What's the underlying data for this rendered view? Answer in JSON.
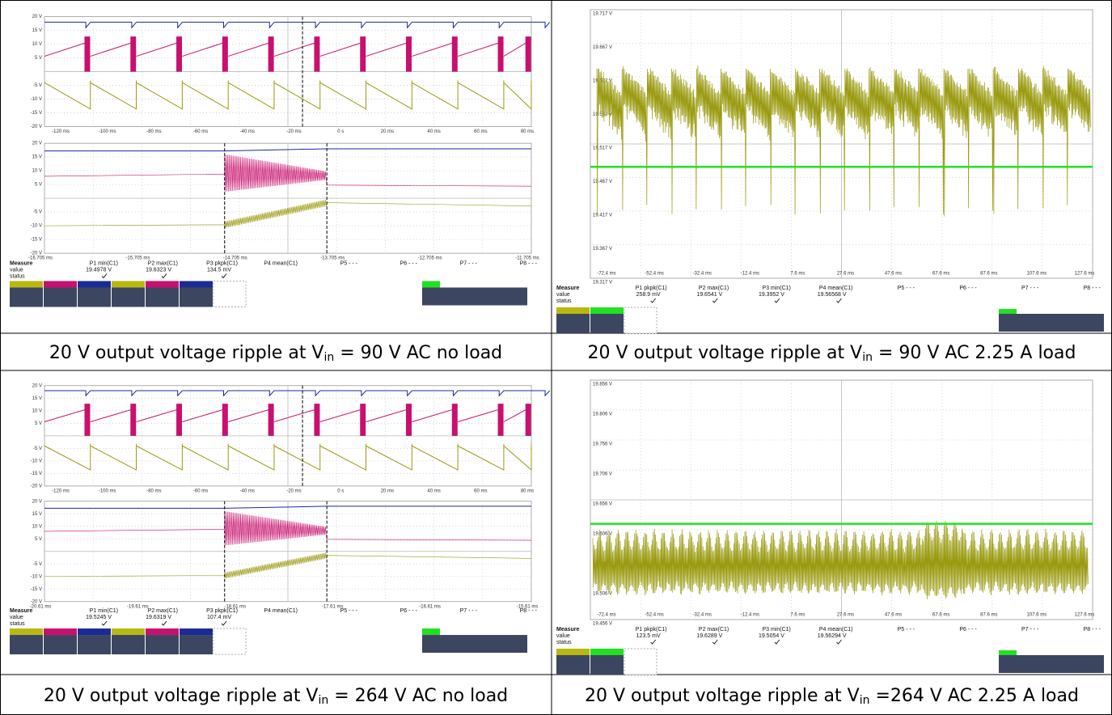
{
  "panels": [
    {
      "caption": {
        "pre": "20 V output voltage ripple at V",
        "sub": "in",
        "post": " = 90 V AC no load"
      },
      "scope": {
        "kind": "dual",
        "top_yticks": [
          "20 V",
          "15 V",
          "10 V",
          "5 V",
          "-5 V",
          "-10 V",
          "-15 V",
          "-20 V"
        ],
        "top_xticks": [
          "-120 ms",
          "-100 ms",
          "-80 ms",
          "-60 ms",
          "-40 ms",
          "-20 ms",
          "0 s",
          "20 ms",
          "40 ms",
          "60 ms",
          "80 ms"
        ],
        "zoom_yticks": [
          "20 V",
          "15 V",
          "10 V",
          "5 V",
          "-5 V",
          "-10 V",
          "-15 V",
          "-20 V"
        ],
        "zoom_xticks": [
          "-16.705 ms",
          "-15.705 ms",
          "-14.705 ms",
          "-13.705 ms",
          "-12.705 ms",
          "-11.705 ms"
        ],
        "measure": {
          "title": "Measure",
          "rows": [
            "value",
            "status"
          ],
          "params": [
            "P1 min(C1)",
            "P2 max(C1)",
            "P3 pkpk(C1)",
            "P4 mean(C1)",
            "P5 - - -",
            "P6 - - -",
            "P7 - - -",
            "P8 - - -"
          ],
          "values": [
            "19.4978 V",
            "19.6323 V",
            "134.5 mV"
          ]
        }
      }
    },
    {
      "caption": {
        "pre": "20 V output voltage ripple at V",
        "sub": "in",
        "post": " = 90 V AC 2.25 A load"
      },
      "scope": {
        "kind": "single",
        "yticks": [
          "19.717 V",
          "19.667 V",
          "19.617 V",
          "19.567 V",
          "19.517 V",
          "19.467 V",
          "19.417 V",
          "19.367 V",
          "19.317 V"
        ],
        "xticks": [
          "-72.4 ms",
          "-52.4 ms",
          "-32.4 ms",
          "-12.4 ms",
          "7.6 ms",
          "27.6 ms",
          "47.6 ms",
          "67.6 ms",
          "87.6 ms",
          "107.6 ms",
          "127.6 ms"
        ],
        "measure": {
          "title": "Measure",
          "rows": [
            "value",
            "status"
          ],
          "params": [
            "P1 pkpk(C1)",
            "P2 max(C1)",
            "P3 min(C1)",
            "P4 mean(C1)",
            "P5 - - -",
            "P6 - - -",
            "P7 - - -",
            "P8 - - -"
          ],
          "values": [
            "258.9 mV",
            "19.6541 V",
            "19.3952 V",
            "19.56568 V"
          ]
        }
      }
    },
    {
      "caption": {
        "pre": "20 V output voltage ripple at V",
        "sub": "in",
        "post": " = 264 V AC no load"
      },
      "scope": {
        "kind": "dual",
        "top_yticks": [
          "20 V",
          "15 V",
          "10 V",
          "5 V",
          "-5 V",
          "-10 V",
          "-15 V",
          "-20 V"
        ],
        "top_xticks": [
          "-120 ms",
          "-100 ms",
          "-80 ms",
          "-60 ms",
          "-40 ms",
          "-20 ms",
          "0 s",
          "20 ms",
          "40 ms",
          "60 ms",
          "80 ms"
        ],
        "zoom_yticks": [
          "20 V",
          "15 V",
          "10 V",
          "5 V",
          "-5 V",
          "-10 V",
          "-15 V",
          "-20 V"
        ],
        "zoom_xticks": [
          "-20.61 ms",
          "-19.61 ms",
          "-18.61 ms",
          "-17.61 ms",
          "-16.61 ms",
          "-15.61 ms"
        ],
        "measure": {
          "title": "Measure",
          "rows": [
            "value",
            "status"
          ],
          "params": [
            "P1 min(C1)",
            "P2 max(C1)",
            "P3 pkpk(C1)",
            "P4 mean(C1)",
            "P5 - - -",
            "P6 - - -",
            "P7 - - -",
            "P8 - - -"
          ],
          "values": [
            "19.5245 V",
            "19.6319 V",
            "107.4 mV"
          ]
        }
      }
    },
    {
      "caption": {
        "pre": "20 V output voltage ripple at V",
        "sub": "in",
        "post": " =264 V AC 2.25 A load"
      },
      "scope": {
        "kind": "single",
        "yticks": [
          "19.856 V",
          "19.806 V",
          "19.756 V",
          "19.706 V",
          "19.656 V",
          "19.606 V",
          "19.556 V",
          "19.506 V",
          "19.456 V"
        ],
        "xticks": [
          "-72.4 ms",
          "-52.4 ms",
          "-32.4 ms",
          "-12.4 ms",
          "7.6 ms",
          "27.6 ms",
          "47.6 ms",
          "67.6 ms",
          "87.6 ms",
          "107.6 ms",
          "127.6 ms"
        ],
        "measure": {
          "title": "Measure",
          "rows": [
            "value",
            "status"
          ],
          "params": [
            "P1 pkpk(C1)",
            "P2 max(C1)",
            "P3 min(C1)",
            "P4 mean(C1)",
            "P5 - - -",
            "P6 - - -",
            "P7 - - -",
            "P8 - - -"
          ],
          "values": [
            "123.5 mV",
            "19.6289 V",
            "19.5054 V",
            "19.56294 V"
          ]
        }
      }
    }
  ]
}
